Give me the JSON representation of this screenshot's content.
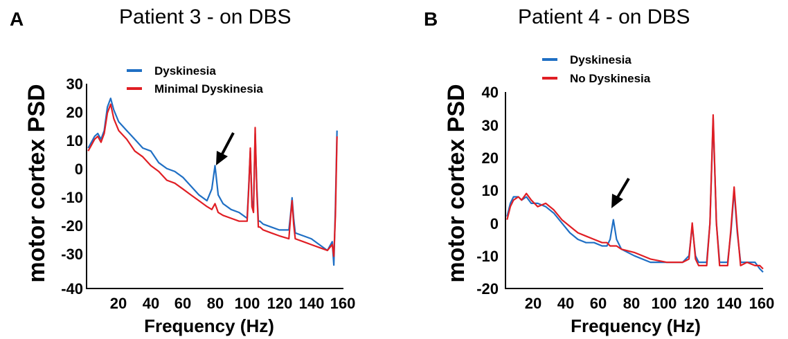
{
  "panels": [
    {
      "letter": "A",
      "title": "Patient 3 - on DBS"
    },
    {
      "letter": "B",
      "title": "Patient 4 - on DBS"
    }
  ],
  "colors": {
    "dyskinesia": "#1f6fc4",
    "no_dyskinesia": "#e01e24",
    "axis": "#000000"
  },
  "chart_data": [
    {
      "type": "line",
      "title": "Patient 3 - on DBS",
      "xlabel": "Frequency (Hz)",
      "ylabel": "motor cortex PSD",
      "xlim": [
        0,
        160
      ],
      "ylim": [
        -40,
        30
      ],
      "xticks": [
        20,
        40,
        60,
        80,
        100,
        120,
        140,
        160
      ],
      "yticks": [
        30,
        20,
        10,
        0,
        -10,
        -20,
        -30,
        -40
      ],
      "legend_position": "top-center",
      "annotation": "arrow pointing to peak near 80 Hz",
      "series": [
        {
          "name": "Dyskinesia",
          "color": "#1f6fc4",
          "x": [
            1,
            3,
            5,
            7,
            9,
            11,
            13,
            15,
            17,
            20,
            25,
            30,
            35,
            40,
            45,
            50,
            55,
            60,
            65,
            70,
            75,
            78,
            80,
            82,
            85,
            90,
            95,
            100,
            101,
            102,
            103,
            104,
            105,
            106,
            107,
            108,
            110,
            115,
            120,
            126,
            127,
            128,
            129,
            130,
            135,
            140,
            145,
            150,
            153,
            154,
            155,
            156
          ],
          "y": [
            8,
            10,
            12,
            13,
            11,
            14,
            22,
            25,
            21,
            17,
            14,
            11,
            8,
            7,
            3,
            1,
            0,
            -2,
            -5,
            -8,
            -10,
            -6,
            2,
            -8,
            -11,
            -13,
            -14,
            -16,
            -5,
            7,
            -10,
            -12,
            13,
            -5,
            -17,
            -17,
            -18,
            -19,
            -20,
            -20,
            -15,
            -9,
            -16,
            -21,
            -22,
            -23,
            -25,
            -27,
            -24,
            -32,
            -12,
            14
          ]
        },
        {
          "name": "Minimal Dyskinesia",
          "color": "#e01e24",
          "x": [
            1,
            3,
            5,
            7,
            9,
            11,
            13,
            15,
            17,
            20,
            25,
            30,
            35,
            40,
            45,
            50,
            55,
            60,
            65,
            70,
            75,
            78,
            80,
            82,
            85,
            90,
            95,
            100,
            101,
            102,
            103,
            104,
            105,
            106,
            107,
            108,
            110,
            115,
            120,
            126,
            127,
            128,
            129,
            130,
            135,
            140,
            145,
            150,
            153,
            154,
            155,
            156
          ],
          "y": [
            7,
            9,
            11,
            12,
            10,
            13,
            20,
            23,
            18,
            14,
            11,
            7,
            5,
            2,
            0,
            -3,
            -4,
            -6,
            -8,
            -10,
            -12,
            -13,
            -11,
            -14,
            -15,
            -16,
            -17,
            -17,
            -6,
            8,
            -12,
            -14,
            15,
            -6,
            -19,
            -19,
            -20,
            -21,
            -22,
            -23,
            -16,
            -10,
            -18,
            -23,
            -24,
            -25,
            -26,
            -27,
            -25,
            -29,
            -15,
            12
          ]
        }
      ]
    },
    {
      "type": "line",
      "title": "Patient 4 - on DBS",
      "xlabel": "Frequency (Hz)",
      "ylabel": "motor cortex PSD",
      "xlim": [
        0,
        160
      ],
      "ylim": [
        -20,
        40
      ],
      "xticks": [
        20,
        40,
        60,
        80,
        100,
        120,
        140,
        160
      ],
      "yticks": [
        40,
        30,
        20,
        10,
        0,
        -10,
        -20
      ],
      "legend_position": "top-center",
      "annotation": "arrow pointing to peak near 67 Hz",
      "series": [
        {
          "name": "Dyskinesia",
          "color": "#1f6fc4",
          "x": [
            1,
            3,
            5,
            8,
            10,
            13,
            16,
            20,
            25,
            30,
            35,
            40,
            45,
            50,
            55,
            60,
            63,
            65,
            67,
            69,
            72,
            80,
            90,
            100,
            110,
            114,
            116,
            118,
            120,
            125,
            127,
            129,
            131,
            133,
            138,
            140,
            142,
            144,
            146,
            150,
            155,
            158,
            160
          ],
          "y": [
            2,
            6,
            8,
            8,
            7,
            8,
            6,
            6,
            5,
            3,
            0,
            -3,
            -5,
            -6,
            -6,
            -7,
            -7,
            -5,
            1,
            -5,
            -8,
            -10,
            -12,
            -12,
            -12,
            -10,
            -1,
            -10,
            -12,
            -12,
            0,
            32,
            0,
            -12,
            -12,
            -3,
            10,
            -3,
            -12,
            -12,
            -12,
            -14,
            -15
          ]
        },
        {
          "name": "No Dyskinesia",
          "color": "#e01e24",
          "x": [
            1,
            3,
            5,
            8,
            10,
            13,
            16,
            20,
            25,
            30,
            35,
            40,
            45,
            50,
            55,
            60,
            63,
            65,
            67,
            69,
            72,
            80,
            90,
            100,
            110,
            114,
            116,
            118,
            120,
            125,
            127,
            129,
            131,
            133,
            138,
            140,
            142,
            144,
            146,
            150,
            155,
            158,
            160
          ],
          "y": [
            1,
            5,
            7,
            8,
            7,
            9,
            7,
            5,
            6,
            4,
            1,
            -1,
            -3,
            -4,
            -5,
            -6,
            -6,
            -7,
            -7,
            -7,
            -8,
            -9,
            -11,
            -12,
            -12,
            -11,
            0,
            -11,
            -13,
            -13,
            0,
            33,
            0,
            -13,
            -13,
            -2,
            11,
            -2,
            -13,
            -12,
            -13,
            -13,
            -14
          ]
        }
      ]
    }
  ]
}
